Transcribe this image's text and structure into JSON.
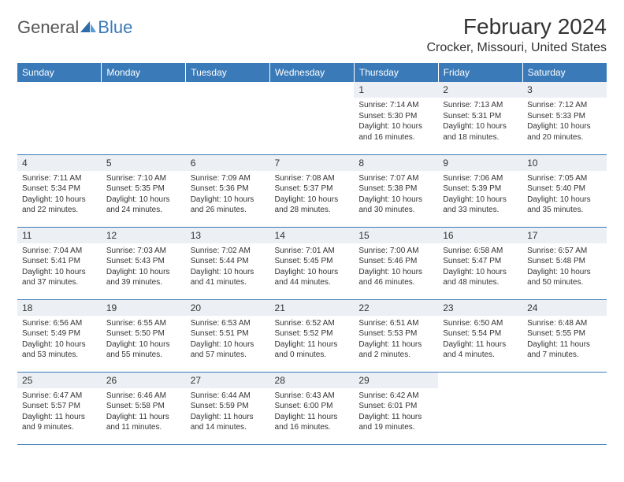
{
  "brand": {
    "general": "General",
    "blue": "Blue"
  },
  "title": "February 2024",
  "location": "Crocker, Missouri, United States",
  "colors": {
    "header_bg": "#3a7ab8",
    "daynum_bg": "#eceff3",
    "border": "#3a7ab8",
    "text": "#333333"
  },
  "weekdays": [
    "Sunday",
    "Monday",
    "Tuesday",
    "Wednesday",
    "Thursday",
    "Friday",
    "Saturday"
  ],
  "weeks": [
    [
      null,
      null,
      null,
      null,
      {
        "n": "1",
        "sr": "7:14 AM",
        "ss": "5:30 PM",
        "dl": "10 hours and 16 minutes."
      },
      {
        "n": "2",
        "sr": "7:13 AM",
        "ss": "5:31 PM",
        "dl": "10 hours and 18 minutes."
      },
      {
        "n": "3",
        "sr": "7:12 AM",
        "ss": "5:33 PM",
        "dl": "10 hours and 20 minutes."
      }
    ],
    [
      {
        "n": "4",
        "sr": "7:11 AM",
        "ss": "5:34 PM",
        "dl": "10 hours and 22 minutes."
      },
      {
        "n": "5",
        "sr": "7:10 AM",
        "ss": "5:35 PM",
        "dl": "10 hours and 24 minutes."
      },
      {
        "n": "6",
        "sr": "7:09 AM",
        "ss": "5:36 PM",
        "dl": "10 hours and 26 minutes."
      },
      {
        "n": "7",
        "sr": "7:08 AM",
        "ss": "5:37 PM",
        "dl": "10 hours and 28 minutes."
      },
      {
        "n": "8",
        "sr": "7:07 AM",
        "ss": "5:38 PM",
        "dl": "10 hours and 30 minutes."
      },
      {
        "n": "9",
        "sr": "7:06 AM",
        "ss": "5:39 PM",
        "dl": "10 hours and 33 minutes."
      },
      {
        "n": "10",
        "sr": "7:05 AM",
        "ss": "5:40 PM",
        "dl": "10 hours and 35 minutes."
      }
    ],
    [
      {
        "n": "11",
        "sr": "7:04 AM",
        "ss": "5:41 PM",
        "dl": "10 hours and 37 minutes."
      },
      {
        "n": "12",
        "sr": "7:03 AM",
        "ss": "5:43 PM",
        "dl": "10 hours and 39 minutes."
      },
      {
        "n": "13",
        "sr": "7:02 AM",
        "ss": "5:44 PM",
        "dl": "10 hours and 41 minutes."
      },
      {
        "n": "14",
        "sr": "7:01 AM",
        "ss": "5:45 PM",
        "dl": "10 hours and 44 minutes."
      },
      {
        "n": "15",
        "sr": "7:00 AM",
        "ss": "5:46 PM",
        "dl": "10 hours and 46 minutes."
      },
      {
        "n": "16",
        "sr": "6:58 AM",
        "ss": "5:47 PM",
        "dl": "10 hours and 48 minutes."
      },
      {
        "n": "17",
        "sr": "6:57 AM",
        "ss": "5:48 PM",
        "dl": "10 hours and 50 minutes."
      }
    ],
    [
      {
        "n": "18",
        "sr": "6:56 AM",
        "ss": "5:49 PM",
        "dl": "10 hours and 53 minutes."
      },
      {
        "n": "19",
        "sr": "6:55 AM",
        "ss": "5:50 PM",
        "dl": "10 hours and 55 minutes."
      },
      {
        "n": "20",
        "sr": "6:53 AM",
        "ss": "5:51 PM",
        "dl": "10 hours and 57 minutes."
      },
      {
        "n": "21",
        "sr": "6:52 AM",
        "ss": "5:52 PM",
        "dl": "11 hours and 0 minutes."
      },
      {
        "n": "22",
        "sr": "6:51 AM",
        "ss": "5:53 PM",
        "dl": "11 hours and 2 minutes."
      },
      {
        "n": "23",
        "sr": "6:50 AM",
        "ss": "5:54 PM",
        "dl": "11 hours and 4 minutes."
      },
      {
        "n": "24",
        "sr": "6:48 AM",
        "ss": "5:55 PM",
        "dl": "11 hours and 7 minutes."
      }
    ],
    [
      {
        "n": "25",
        "sr": "6:47 AM",
        "ss": "5:57 PM",
        "dl": "11 hours and 9 minutes."
      },
      {
        "n": "26",
        "sr": "6:46 AM",
        "ss": "5:58 PM",
        "dl": "11 hours and 11 minutes."
      },
      {
        "n": "27",
        "sr": "6:44 AM",
        "ss": "5:59 PM",
        "dl": "11 hours and 14 minutes."
      },
      {
        "n": "28",
        "sr": "6:43 AM",
        "ss": "6:00 PM",
        "dl": "11 hours and 16 minutes."
      },
      {
        "n": "29",
        "sr": "6:42 AM",
        "ss": "6:01 PM",
        "dl": "11 hours and 19 minutes."
      },
      null,
      null
    ]
  ],
  "labels": {
    "sunrise": "Sunrise: ",
    "sunset": "Sunset: ",
    "daylight": "Daylight: "
  }
}
